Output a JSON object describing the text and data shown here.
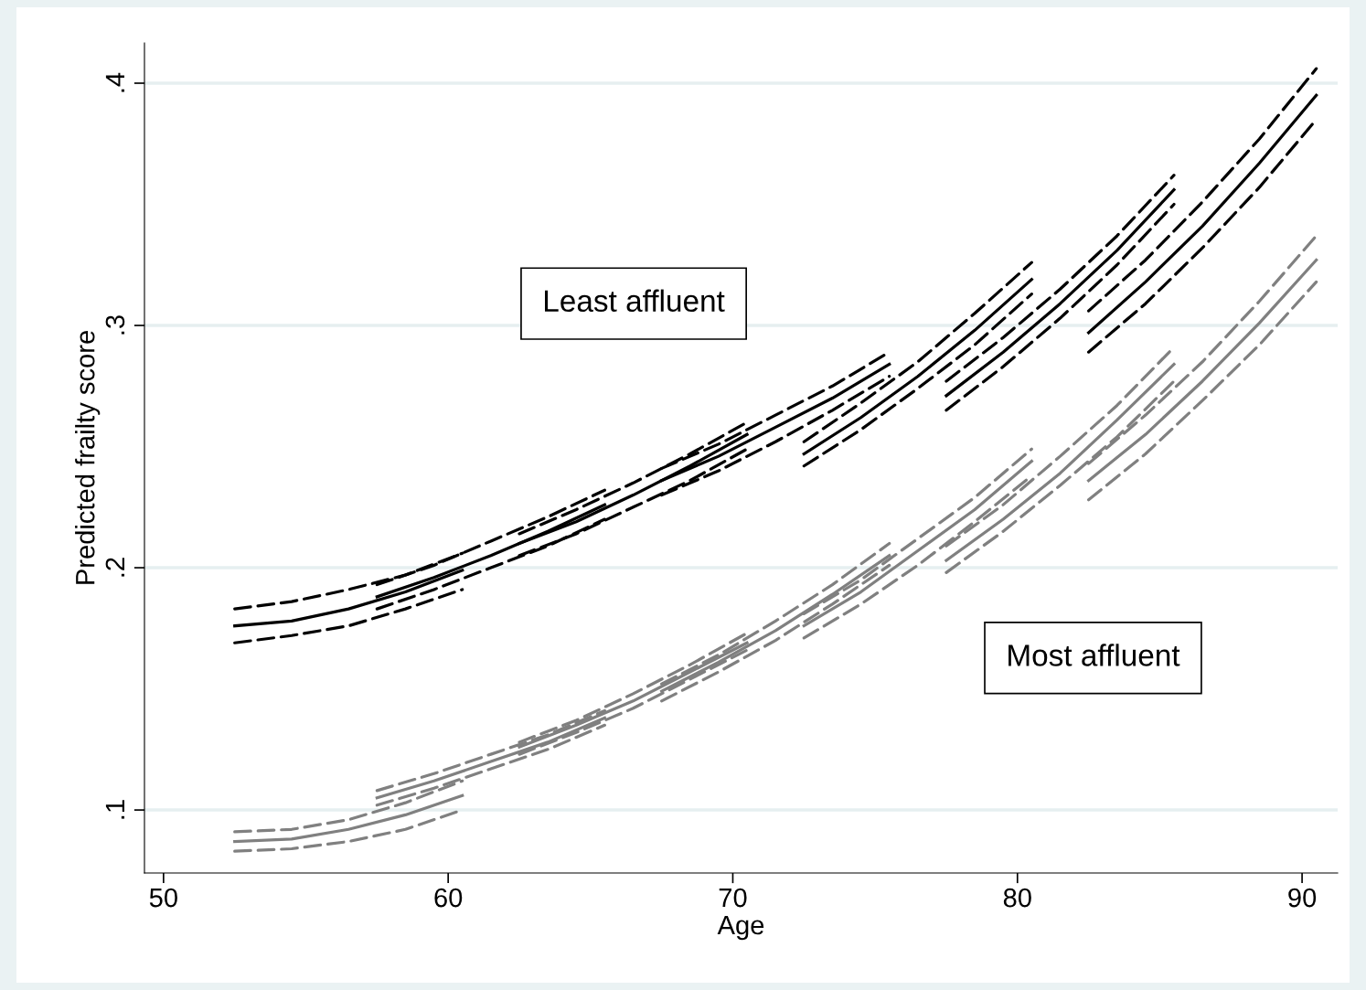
{
  "chart_data": {
    "type": "line",
    "xlabel": "Age",
    "ylabel": "Predicted frailty score",
    "xlim": [
      49.33,
      91.25
    ],
    "ylim": [
      0.074,
      0.4166
    ],
    "xticks": [
      50,
      60,
      70,
      80,
      90
    ],
    "yticks": [
      {
        "value": 0.1,
        "label": ".1"
      },
      {
        "value": 0.2,
        "label": ".2"
      },
      {
        "value": 0.3,
        "label": ".3"
      },
      {
        "value": 0.4,
        "label": ".4"
      }
    ],
    "grid": "y",
    "legend": false,
    "marker": "none",
    "annotations": [
      "Least affluent",
      "Most affluent"
    ],
    "series": [
      {
        "color": "#000000",
        "line_style": "solid",
        "x": [
          52.5,
          54.5,
          56.5,
          58.5,
          60.5
        ],
        "values": [
          0.176,
          0.178,
          0.183,
          0.19,
          0.199
        ]
      },
      {
        "color": "#000000",
        "line_style": "dashed",
        "x": [
          52.5,
          54.5,
          56.5,
          58.5,
          60.5
        ],
        "values": [
          0.183,
          0.186,
          0.191,
          0.197,
          0.206
        ]
      },
      {
        "color": "#000000",
        "line_style": "dashed",
        "x": [
          52.5,
          54.5,
          56.5,
          58.5,
          60.5
        ],
        "values": [
          0.169,
          0.172,
          0.176,
          0.183,
          0.191
        ]
      },
      {
        "color": "#000000",
        "line_style": "solid",
        "x": [
          57.5,
          59.5,
          61.5,
          63.5,
          65.5
        ],
        "values": [
          0.188,
          0.196,
          0.205,
          0.215,
          0.226
        ]
      },
      {
        "color": "#000000",
        "line_style": "dashed",
        "x": [
          57.5,
          59.5,
          61.5,
          63.5,
          65.5
        ],
        "values": [
          0.193,
          0.201,
          0.211,
          0.221,
          0.232
        ]
      },
      {
        "color": "#000000",
        "line_style": "dashed",
        "x": [
          57.5,
          59.5,
          61.5,
          63.5,
          65.5
        ],
        "values": [
          0.183,
          0.191,
          0.2,
          0.209,
          0.22
        ]
      },
      {
        "color": "#000000",
        "line_style": "solid",
        "x": [
          62.5,
          64.5,
          66.5,
          68.5,
          70.5
        ],
        "values": [
          0.21,
          0.219,
          0.23,
          0.242,
          0.255
        ]
      },
      {
        "color": "#000000",
        "line_style": "dashed",
        "x": [
          62.5,
          64.5,
          66.5,
          68.5,
          70.5
        ],
        "values": [
          0.214,
          0.224,
          0.235,
          0.247,
          0.26
        ]
      },
      {
        "color": "#000000",
        "line_style": "dashed",
        "x": [
          62.5,
          64.5,
          66.5,
          68.5,
          70.5
        ],
        "values": [
          0.205,
          0.214,
          0.225,
          0.236,
          0.249
        ]
      },
      {
        "color": "#000000",
        "line_style": "solid",
        "x": [
          67.5,
          69.5,
          71.5,
          73.5,
          75.5
        ],
        "values": [
          0.236,
          0.246,
          0.258,
          0.27,
          0.284
        ]
      },
      {
        "color": "#000000",
        "line_style": "dashed",
        "x": [
          67.5,
          69.5,
          71.5,
          73.5,
          75.5
        ],
        "values": [
          0.241,
          0.251,
          0.263,
          0.275,
          0.289
        ]
      },
      {
        "color": "#000000",
        "line_style": "dashed",
        "x": [
          67.5,
          69.5,
          71.5,
          73.5,
          75.5
        ],
        "values": [
          0.23,
          0.24,
          0.252,
          0.265,
          0.279
        ]
      },
      {
        "color": "#000000",
        "line_style": "solid",
        "x": [
          72.5,
          74.5,
          76.5,
          78.5,
          80.5
        ],
        "values": [
          0.247,
          0.262,
          0.279,
          0.298,
          0.319
        ]
      },
      {
        "color": "#000000",
        "line_style": "dashed",
        "x": [
          72.5,
          74.5,
          76.5,
          78.5,
          80.5
        ],
        "values": [
          0.252,
          0.268,
          0.285,
          0.305,
          0.326
        ]
      },
      {
        "color": "#000000",
        "line_style": "dashed",
        "x": [
          72.5,
          74.5,
          76.5,
          78.5,
          80.5
        ],
        "values": [
          0.242,
          0.257,
          0.274,
          0.292,
          0.313
        ]
      },
      {
        "color": "#000000",
        "line_style": "solid",
        "x": [
          77.5,
          79.5,
          81.5,
          83.5,
          85.5
        ],
        "values": [
          0.271,
          0.289,
          0.309,
          0.331,
          0.356
        ]
      },
      {
        "color": "#000000",
        "line_style": "dashed",
        "x": [
          77.5,
          79.5,
          81.5,
          83.5,
          85.5
        ],
        "values": [
          0.277,
          0.295,
          0.315,
          0.337,
          0.362
        ]
      },
      {
        "color": "#000000",
        "line_style": "dashed",
        "x": [
          77.5,
          79.5,
          81.5,
          83.5,
          85.5
        ],
        "values": [
          0.265,
          0.283,
          0.303,
          0.325,
          0.35
        ]
      },
      {
        "color": "#000000",
        "line_style": "solid",
        "x": [
          82.5,
          84.5,
          86.5,
          88.5,
          90.5
        ],
        "values": [
          0.297,
          0.318,
          0.341,
          0.367,
          0.395
        ]
      },
      {
        "color": "#000000",
        "line_style": "dashed",
        "x": [
          82.5,
          84.5,
          86.5,
          88.5,
          90.5
        ],
        "values": [
          0.306,
          0.327,
          0.351,
          0.377,
          0.406
        ]
      },
      {
        "color": "#000000",
        "line_style": "dashed",
        "x": [
          82.5,
          84.5,
          86.5,
          88.5,
          90.5
        ],
        "values": [
          0.289,
          0.309,
          0.332,
          0.357,
          0.385
        ]
      },
      {
        "color": "#808080",
        "line_style": "solid",
        "x": [
          52.5,
          54.5,
          56.5,
          58.5,
          60.5
        ],
        "values": [
          0.087,
          0.088,
          0.092,
          0.098,
          0.106
        ]
      },
      {
        "color": "#808080",
        "line_style": "dashed",
        "x": [
          52.5,
          54.5,
          56.5,
          58.5,
          60.5
        ],
        "values": [
          0.091,
          0.092,
          0.096,
          0.103,
          0.112
        ]
      },
      {
        "color": "#808080",
        "line_style": "dashed",
        "x": [
          52.5,
          54.5,
          56.5,
          58.5,
          60.5
        ],
        "values": [
          0.083,
          0.084,
          0.087,
          0.092,
          0.1
        ]
      },
      {
        "color": "#808080",
        "line_style": "solid",
        "x": [
          57.5,
          59.5,
          61.5,
          63.5,
          65.5
        ],
        "values": [
          0.105,
          0.112,
          0.12,
          0.128,
          0.138
        ]
      },
      {
        "color": "#808080",
        "line_style": "dashed",
        "x": [
          57.5,
          59.5,
          61.5,
          63.5,
          65.5
        ],
        "values": [
          0.108,
          0.115,
          0.123,
          0.131,
          0.141
        ]
      },
      {
        "color": "#808080",
        "line_style": "dashed",
        "x": [
          57.5,
          59.5,
          61.5,
          63.5,
          65.5
        ],
        "values": [
          0.102,
          0.109,
          0.117,
          0.125,
          0.135
        ]
      },
      {
        "color": "#808080",
        "line_style": "solid",
        "x": [
          62.5,
          64.5,
          66.5,
          68.5,
          70.5
        ],
        "values": [
          0.126,
          0.135,
          0.145,
          0.157,
          0.169
        ]
      },
      {
        "color": "#808080",
        "line_style": "dashed",
        "x": [
          62.5,
          64.5,
          66.5,
          68.5,
          70.5
        ],
        "values": [
          0.128,
          0.137,
          0.148,
          0.16,
          0.173
        ]
      },
      {
        "color": "#808080",
        "line_style": "dashed",
        "x": [
          62.5,
          64.5,
          66.5,
          68.5,
          70.5
        ],
        "values": [
          0.123,
          0.132,
          0.142,
          0.154,
          0.166
        ]
      },
      {
        "color": "#808080",
        "line_style": "solid",
        "x": [
          67.5,
          69.5,
          71.5,
          73.5,
          75.5
        ],
        "values": [
          0.149,
          0.161,
          0.174,
          0.189,
          0.205
        ]
      },
      {
        "color": "#808080",
        "line_style": "dashed",
        "x": [
          67.5,
          69.5,
          71.5,
          73.5,
          75.5
        ],
        "values": [
          0.152,
          0.164,
          0.178,
          0.193,
          0.21
        ]
      },
      {
        "color": "#808080",
        "line_style": "dashed",
        "x": [
          67.5,
          69.5,
          71.5,
          73.5,
          75.5
        ],
        "values": [
          0.145,
          0.157,
          0.17,
          0.185,
          0.201
        ]
      },
      {
        "color": "#808080",
        "line_style": "solid",
        "x": [
          72.5,
          74.5,
          76.5,
          78.5,
          80.5
        ],
        "values": [
          0.176,
          0.19,
          0.207,
          0.224,
          0.244
        ]
      },
      {
        "color": "#808080",
        "line_style": "dashed",
        "x": [
          72.5,
          74.5,
          76.5,
          78.5,
          80.5
        ],
        "values": [
          0.181,
          0.195,
          0.212,
          0.229,
          0.249
        ]
      },
      {
        "color": "#808080",
        "line_style": "dashed",
        "x": [
          72.5,
          74.5,
          76.5,
          78.5,
          80.5
        ],
        "values": [
          0.171,
          0.185,
          0.201,
          0.219,
          0.238
        ]
      },
      {
        "color": "#808080",
        "line_style": "solid",
        "x": [
          77.5,
          79.5,
          81.5,
          83.5,
          85.5
        ],
        "values": [
          0.203,
          0.22,
          0.239,
          0.261,
          0.284
        ]
      },
      {
        "color": "#808080",
        "line_style": "dashed",
        "x": [
          77.5,
          79.5,
          81.5,
          83.5,
          85.5
        ],
        "values": [
          0.209,
          0.226,
          0.246,
          0.267,
          0.291
        ]
      },
      {
        "color": "#808080",
        "line_style": "dashed",
        "x": [
          77.5,
          79.5,
          81.5,
          83.5,
          85.5
        ],
        "values": [
          0.198,
          0.215,
          0.234,
          0.254,
          0.277
        ]
      },
      {
        "color": "#808080",
        "line_style": "solid",
        "x": [
          82.5,
          84.5,
          86.5,
          88.5,
          90.5
        ],
        "values": [
          0.236,
          0.255,
          0.277,
          0.301,
          0.327
        ]
      },
      {
        "color": "#808080",
        "line_style": "dashed",
        "x": [
          82.5,
          84.5,
          86.5,
          88.5,
          90.5
        ],
        "values": [
          0.243,
          0.263,
          0.285,
          0.31,
          0.337
        ]
      },
      {
        "color": "#808080",
        "line_style": "dashed",
        "x": [
          82.5,
          84.5,
          86.5,
          88.5,
          90.5
        ],
        "values": [
          0.228,
          0.247,
          0.269,
          0.292,
          0.318
        ]
      }
    ]
  }
}
